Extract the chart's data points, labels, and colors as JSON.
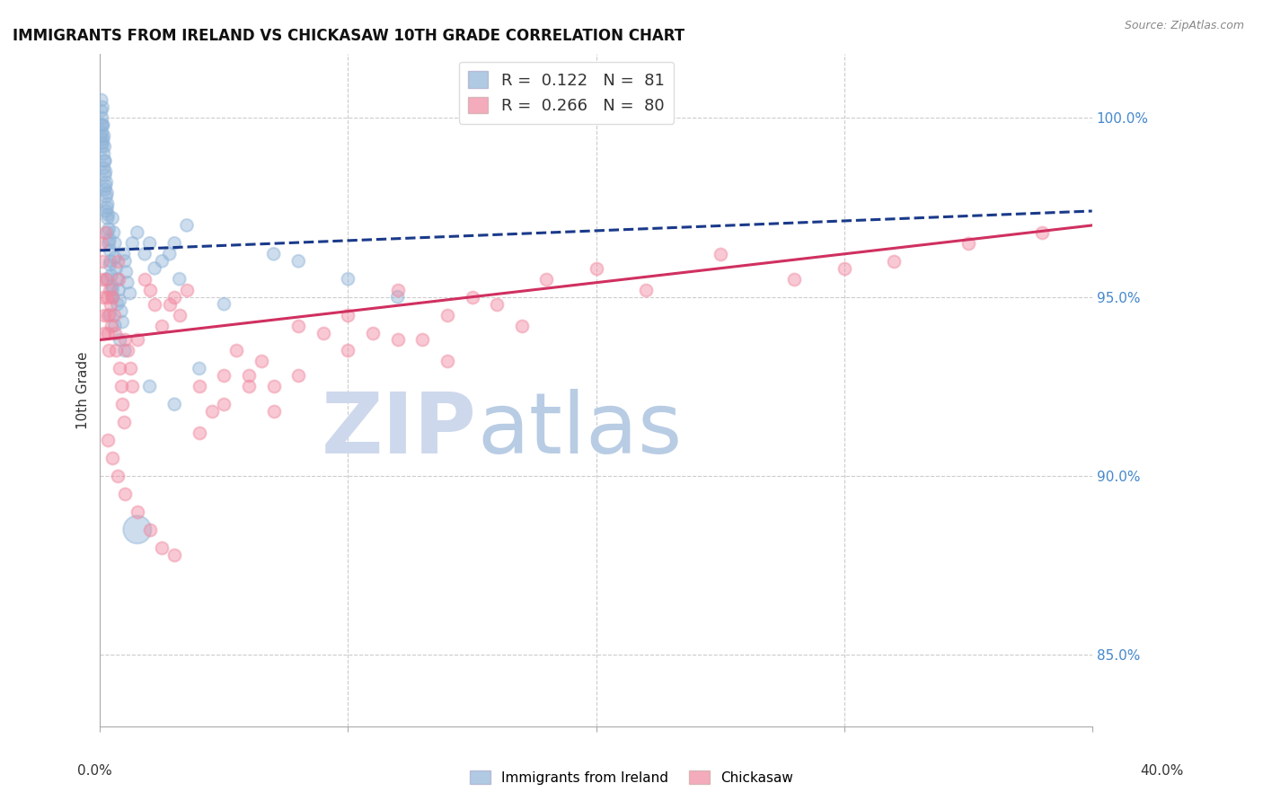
{
  "title": "IMMIGRANTS FROM IRELAND VS CHICKASAW 10TH GRADE CORRELATION CHART",
  "source": "Source: ZipAtlas.com",
  "ylabel": "10th Grade",
  "ylabel_right_ticks": [
    85.0,
    90.0,
    95.0,
    100.0
  ],
  "xmin": 0.0,
  "xmax": 40.0,
  "ymin": 83.0,
  "ymax": 101.8,
  "blue_R": 0.122,
  "blue_N": 81,
  "pink_R": 0.266,
  "pink_N": 80,
  "blue_color": "#90b4d8",
  "pink_color": "#f088a0",
  "blue_trend_color": "#1a3a8a",
  "pink_trend_color": "#d03060",
  "watermark_zip_color": "#cdd8ec",
  "watermark_atlas_color": "#b8cce4",
  "background_color": "#ffffff",
  "blue_trend": [
    0.0,
    96.3,
    40.0,
    97.4
  ],
  "pink_trend": [
    0.0,
    93.8,
    40.0,
    97.0
  ],
  "blue_scatter_x": [
    0.05,
    0.05,
    0.05,
    0.05,
    0.08,
    0.08,
    0.08,
    0.1,
    0.1,
    0.1,
    0.12,
    0.12,
    0.15,
    0.15,
    0.15,
    0.18,
    0.18,
    0.2,
    0.2,
    0.2,
    0.22,
    0.22,
    0.25,
    0.25,
    0.25,
    0.28,
    0.28,
    0.3,
    0.3,
    0.3,
    0.32,
    0.35,
    0.35,
    0.38,
    0.4,
    0.4,
    0.42,
    0.45,
    0.48,
    0.5,
    0.5,
    0.55,
    0.6,
    0.6,
    0.65,
    0.7,
    0.75,
    0.8,
    0.85,
    0.9,
    0.95,
    1.0,
    1.05,
    1.1,
    1.2,
    1.3,
    1.5,
    1.8,
    2.0,
    2.2,
    2.5,
    2.8,
    3.0,
    3.2,
    3.5,
    0.4,
    0.6,
    0.8,
    1.0,
    1.5,
    2.0,
    3.0,
    4.0,
    5.0,
    7.0,
    8.0,
    10.0,
    12.0,
    0.3,
    0.5,
    0.7
  ],
  "blue_scatter_y": [
    100.5,
    100.2,
    99.8,
    99.5,
    100.0,
    99.6,
    99.2,
    100.3,
    99.8,
    99.3,
    99.8,
    99.4,
    99.5,
    99.0,
    98.6,
    99.2,
    98.8,
    98.8,
    98.4,
    98.0,
    98.5,
    98.1,
    98.2,
    97.8,
    97.4,
    97.9,
    97.5,
    97.6,
    97.2,
    96.8,
    97.3,
    96.9,
    96.5,
    96.6,
    96.3,
    95.9,
    96.0,
    95.6,
    95.3,
    97.2,
    95.0,
    96.8,
    96.5,
    96.1,
    95.8,
    95.5,
    95.2,
    94.9,
    94.6,
    94.3,
    96.2,
    96.0,
    95.7,
    95.4,
    95.1,
    96.5,
    96.8,
    96.2,
    96.5,
    95.8,
    96.0,
    96.2,
    96.5,
    95.5,
    97.0,
    94.5,
    94.2,
    93.8,
    93.5,
    88.5,
    92.5,
    92.0,
    93.0,
    94.8,
    96.2,
    96.0,
    95.5,
    95.0,
    95.5,
    95.2,
    94.8
  ],
  "blue_scatter_size": [
    100,
    100,
    100,
    100,
    100,
    100,
    100,
    100,
    100,
    100,
    100,
    100,
    100,
    100,
    100,
    100,
    100,
    100,
    100,
    100,
    100,
    100,
    100,
    100,
    100,
    100,
    100,
    100,
    100,
    100,
    100,
    100,
    100,
    100,
    100,
    100,
    100,
    100,
    100,
    100,
    100,
    100,
    100,
    100,
    100,
    100,
    100,
    100,
    100,
    100,
    100,
    100,
    100,
    100,
    100,
    100,
    100,
    100,
    100,
    100,
    100,
    100,
    100,
    100,
    100,
    100,
    100,
    100,
    100,
    500,
    100,
    100,
    100,
    100,
    100,
    100,
    100,
    100,
    100,
    100,
    100
  ],
  "pink_scatter_x": [
    0.05,
    0.08,
    0.1,
    0.12,
    0.15,
    0.18,
    0.2,
    0.25,
    0.28,
    0.3,
    0.32,
    0.35,
    0.4,
    0.42,
    0.45,
    0.5,
    0.55,
    0.6,
    0.65,
    0.7,
    0.75,
    0.8,
    0.85,
    0.9,
    0.95,
    1.0,
    1.1,
    1.2,
    1.3,
    1.5,
    1.8,
    2.0,
    2.2,
    2.5,
    2.8,
    3.0,
    3.2,
    3.5,
    4.0,
    4.5,
    5.0,
    5.5,
    6.0,
    6.5,
    7.0,
    8.0,
    9.0,
    10.0,
    11.0,
    12.0,
    13.0,
    14.0,
    15.0,
    16.0,
    17.0,
    18.0,
    20.0,
    22.0,
    25.0,
    28.0,
    30.0,
    32.0,
    35.0,
    38.0,
    0.3,
    0.5,
    0.7,
    1.0,
    1.5,
    2.0,
    2.5,
    3.0,
    4.0,
    5.0,
    6.0,
    7.0,
    8.0,
    10.0,
    12.0,
    14.0
  ],
  "pink_scatter_y": [
    96.5,
    96.0,
    95.5,
    95.0,
    94.5,
    94.0,
    96.8,
    95.5,
    95.0,
    94.5,
    94.0,
    93.5,
    95.2,
    94.8,
    94.2,
    95.0,
    94.5,
    94.0,
    93.5,
    96.0,
    95.5,
    93.0,
    92.5,
    92.0,
    91.5,
    93.8,
    93.5,
    93.0,
    92.5,
    93.8,
    95.5,
    95.2,
    94.8,
    94.2,
    94.8,
    95.0,
    94.5,
    95.2,
    92.5,
    91.8,
    92.0,
    93.5,
    92.8,
    93.2,
    92.5,
    94.2,
    94.0,
    93.5,
    94.0,
    95.2,
    93.8,
    94.5,
    95.0,
    94.8,
    94.2,
    95.5,
    95.8,
    95.2,
    96.2,
    95.5,
    95.8,
    96.0,
    96.5,
    96.8,
    91.0,
    90.5,
    90.0,
    89.5,
    89.0,
    88.5,
    88.0,
    87.8,
    91.2,
    92.8,
    92.5,
    91.8,
    92.8,
    94.5,
    93.8,
    93.2
  ]
}
